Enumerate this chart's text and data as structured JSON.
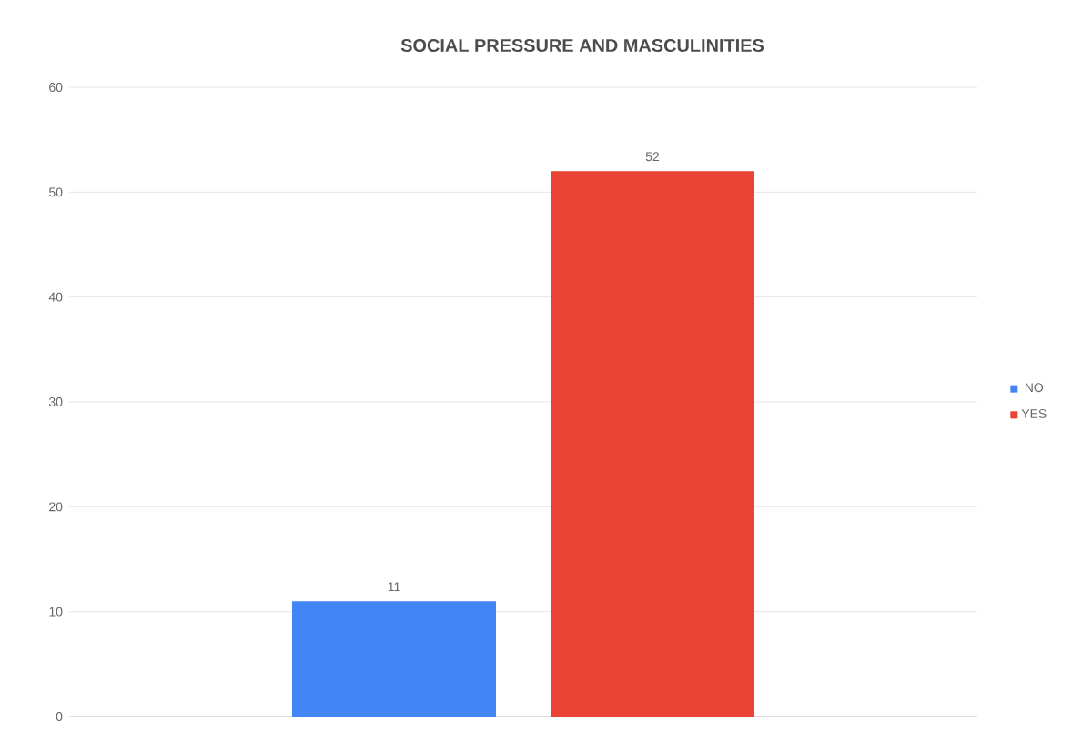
{
  "chart_data": {
    "type": "bar",
    "title": "SOCIAL PRESSURE AND MASCULINITIES",
    "categories": [
      null
    ],
    "series": [
      {
        "name": "NO",
        "color": "#4285f4",
        "values": [
          11
        ]
      },
      {
        "name": "YES",
        "color": "#ea4335",
        "values": [
          52
        ]
      }
    ],
    "ylim": [
      0,
      60
    ],
    "yticks": [
      0,
      10,
      20,
      30,
      40,
      50,
      60
    ],
    "grid": "y",
    "legend": "right",
    "data_labels": true
  }
}
